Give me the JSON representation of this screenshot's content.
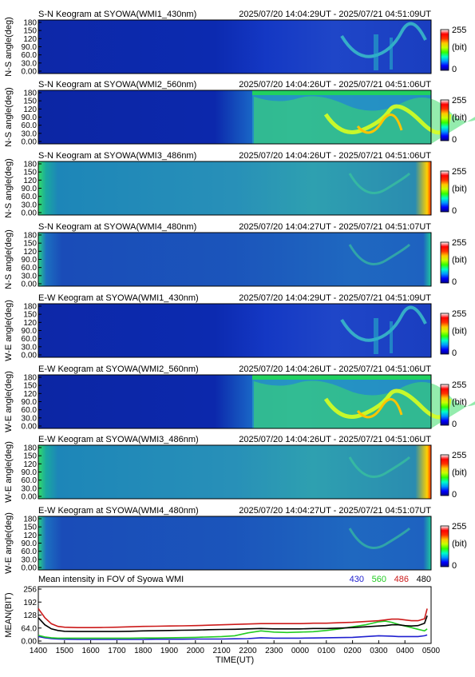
{
  "panels": [
    {
      "title": "S-N Keogram at SYOWA(WMI1_430nm)",
      "time_range": "2025/07/20 14:04:29UT - 2025/07/21 04:51:09UT",
      "ylabel": "N-S angle(deg)",
      "yticks": [
        "180",
        "150",
        "120",
        "90.0",
        "60.0",
        "30.0",
        "0.00"
      ],
      "profile": "weak",
      "bar_labels": [
        "255",
        "(bit)",
        "0"
      ]
    },
    {
      "title": "S-N Keogram at SYOWA(WMI2_560nm)",
      "time_range": "2025/07/20 14:04:26UT - 2025/07/21 04:51:06UT",
      "ylabel": "N-S angle(deg)",
      "yticks": [
        "180",
        "150",
        "120",
        "90.0",
        "60.0",
        "30.0",
        "0.00"
      ],
      "profile": "strong",
      "bar_labels": [
        "255",
        "(bit)",
        "0"
      ]
    },
    {
      "title": "S-N Keogram at SYOWA(WMI3_486nm)",
      "time_range": "2025/07/20 14:04:26UT - 2025/07/21 04:51:06UT",
      "ylabel": "N-S angle(deg)",
      "yticks": [
        "180",
        "150",
        "120",
        "90.0",
        "60.0",
        "30.0",
        "0.00"
      ],
      "profile": "bg",
      "bar_labels": [
        "255",
        "(bit)",
        "0"
      ]
    },
    {
      "title": "S-N Keogram at SYOWA(WMI4_480nm)",
      "time_range": "2025/07/20 14:04:27UT - 2025/07/21 04:51:07UT",
      "ylabel": "N-S angle(deg)",
      "yticks": [
        "180",
        "150",
        "120",
        "90.0",
        "60.0",
        "30.0",
        "0.00"
      ],
      "profile": "bg2",
      "bar_labels": [
        "255",
        "(bit)",
        "0"
      ]
    },
    {
      "title": "E-W Keogram at SYOWA(WMI1_430nm)",
      "time_range": "2025/07/20 14:04:29UT - 2025/07/21 04:51:09UT",
      "ylabel": "W-E angle(deg)",
      "yticks": [
        "180",
        "150",
        "120",
        "90.0",
        "60.0",
        "30.0",
        "0.00"
      ],
      "profile": "weak",
      "bar_labels": [
        "255",
        "(bit)",
        "0"
      ]
    },
    {
      "title": "E-W Keogram at SYOWA(WMI2_560nm)",
      "time_range": "2025/07/20 14:04:26UT - 2025/07/21 04:51:06UT",
      "ylabel": "W-E angle(deg)",
      "yticks": [
        "180",
        "150",
        "120",
        "90.0",
        "60.0",
        "30.0",
        "0.00"
      ],
      "profile": "strong",
      "bar_labels": [
        "255",
        "(bit)",
        "0"
      ]
    },
    {
      "title": "E-W Keogram at SYOWA(WMI3_486nm)",
      "time_range": "2025/07/20 14:04:26UT - 2025/07/21 04:51:06UT",
      "ylabel": "W-E angle(deg)",
      "yticks": [
        "180",
        "150",
        "120",
        "90.0",
        "60.0",
        "30.0",
        "0.00"
      ],
      "profile": "bg",
      "bar_labels": [
        "255",
        "(bit)",
        "0"
      ]
    },
    {
      "title": "E-W Keogram at SYOWA(WMI4_480nm)",
      "time_range": "2025/07/20 14:04:27UT - 2025/07/21 04:51:07UT",
      "ylabel": "W-E angle(deg)",
      "yticks": [
        "180",
        "150",
        "120",
        "90.0",
        "60.0",
        "30.0",
        "0.00"
      ],
      "profile": "bg2",
      "bar_labels": [
        "255",
        "(bit)",
        "0"
      ]
    }
  ],
  "chart_data": {
    "type": "line",
    "title": "Mean intensity in FOV of Syowa WMI",
    "xlabel": "TIME(UT)",
    "ylabel": "MEAN(BIT)",
    "ylim": [
      0,
      256
    ],
    "yticks": [
      "256",
      "192",
      "128",
      "64.0",
      "0.00"
    ],
    "xticks": [
      "1400",
      "1500",
      "1600",
      "1700",
      "1800",
      "1900",
      "2000",
      "2100",
      "2200",
      "2300",
      "0000",
      "0100",
      "0200",
      "0300",
      "0400",
      "0500"
    ],
    "x": [
      14.0,
      14.25,
      14.5,
      14.75,
      15.0,
      15.5,
      16.0,
      16.5,
      17.0,
      17.5,
      18.0,
      18.5,
      19.0,
      19.5,
      20.0,
      20.5,
      21.0,
      21.5,
      22.0,
      22.5,
      23.0,
      23.5,
      24.0,
      24.5,
      25.0,
      25.5,
      26.0,
      26.5,
      27.0,
      27.25,
      27.5,
      27.75,
      28.0,
      28.25,
      28.5,
      28.75,
      28.85
    ],
    "series": [
      {
        "name": "430",
        "color": "#1f1fcf",
        "values": [
          22,
          16,
          12,
          10,
          9,
          8,
          8,
          8,
          8,
          8,
          8,
          9,
          9,
          9,
          10,
          10,
          10,
          11,
          12,
          16,
          14,
          14,
          14,
          15,
          16,
          17,
          18,
          22,
          26,
          25,
          24,
          22,
          22,
          22,
          22,
          26,
          30
        ]
      },
      {
        "name": "560",
        "color": "#22cc22",
        "values": [
          28,
          20,
          16,
          14,
          14,
          14,
          14,
          14,
          14,
          14,
          15,
          15,
          16,
          17,
          18,
          20,
          22,
          26,
          40,
          50,
          44,
          42,
          44,
          46,
          52,
          60,
          70,
          80,
          95,
          98,
          92,
          82,
          74,
          66,
          58,
          50,
          60
        ]
      },
      {
        "name": "486",
        "color": "#cc1a1a",
        "values": [
          160,
          115,
          85,
          72,
          68,
          66,
          66,
          67,
          68,
          70,
          72,
          73,
          74,
          75,
          76,
          78,
          80,
          82,
          84,
          86,
          86,
          86,
          86,
          88,
          88,
          90,
          92,
          96,
          100,
          104,
          108,
          108,
          104,
          100,
          100,
          110,
          160
        ]
      },
      {
        "name": "480",
        "color": "#000000",
        "values": [
          115,
          80,
          60,
          52,
          48,
          47,
          47,
          47,
          47,
          48,
          50,
          51,
          52,
          53,
          54,
          56,
          57,
          58,
          60,
          62,
          60,
          60,
          60,
          62,
          62,
          64,
          66,
          70,
          74,
          76,
          80,
          80,
          76,
          74,
          76,
          88,
          125
        ]
      }
    ]
  },
  "colors": {
    "cb_stops": [
      "#00008c",
      "#0000ff",
      "#0096ff",
      "#00ffc8",
      "#32ff00",
      "#c8ff00",
      "#ffc800",
      "#ff3200",
      "#ff0000",
      "#ffffff"
    ]
  }
}
